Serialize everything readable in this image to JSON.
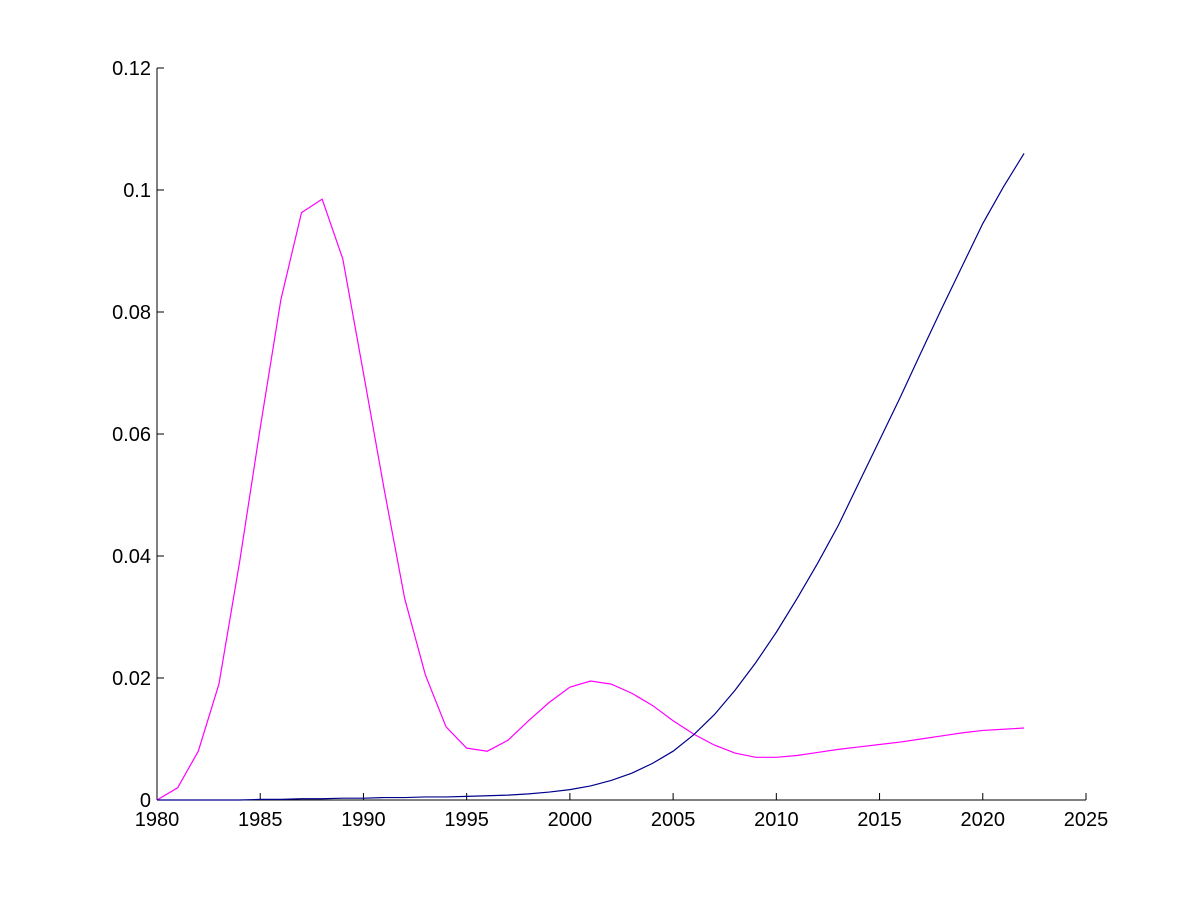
{
  "chart_data": {
    "type": "line",
    "title": "",
    "xlabel": "",
    "ylabel": "",
    "xlim": [
      1980,
      2025
    ],
    "ylim": [
      0,
      0.12
    ],
    "xticks": [
      "1980",
      "1985",
      "1990",
      "1995",
      "2000",
      "2005",
      "2010",
      "2015",
      "2020",
      "2025"
    ],
    "yticks": [
      "0",
      "0.02",
      "0.04",
      "0.06",
      "0.08",
      "0.1",
      "0.12"
    ],
    "grid": false,
    "legend": "none",
    "x": [
      1980,
      1981,
      1982,
      1983,
      1984,
      1985,
      1986,
      1987,
      1988,
      1989,
      1990,
      1991,
      1992,
      1993,
      1994,
      1995,
      1996,
      1997,
      1998,
      1999,
      2000,
      2001,
      2002,
      2003,
      2004,
      2005,
      2006,
      2007,
      2008,
      2009,
      2010,
      2011,
      2012,
      2013,
      2014,
      2015,
      2016,
      2017,
      2018,
      2019,
      2020,
      2021,
      2022
    ],
    "series": [
      {
        "color": "#ff00ff",
        "values": [
          0,
          0.002,
          0.008,
          0.019,
          0.039,
          0.061,
          0.082,
          0.0963,
          0.0985,
          0.0887,
          0.07,
          0.051,
          0.033,
          0.0205,
          0.012,
          0.0085,
          0.008,
          0.0098,
          0.013,
          0.016,
          0.0185,
          0.0195,
          0.019,
          0.0175,
          0.0155,
          0.013,
          0.0108,
          0.009,
          0.0077,
          0.007,
          0.007,
          0.0073,
          0.0078,
          0.0083,
          0.0087,
          0.0091,
          0.0095,
          0.01,
          0.0105,
          0.011,
          0.0114,
          0.0116,
          0.0118
        ]
      },
      {
        "color": "#00008b",
        "values": [
          0,
          0,
          0,
          0,
          0,
          0.0001,
          0.0001,
          0.0002,
          0.0002,
          0.0003,
          0.0003,
          0.0004,
          0.0004,
          0.0005,
          0.0005,
          0.0006,
          0.0007,
          0.0008,
          0.001,
          0.0013,
          0.0017,
          0.0023,
          0.0032,
          0.0044,
          0.006,
          0.008,
          0.0107,
          0.014,
          0.018,
          0.0225,
          0.0275,
          0.033,
          0.0388,
          0.045,
          0.052,
          0.059,
          0.066,
          0.0733,
          0.0805,
          0.0875,
          0.0945,
          0.1005,
          0.106
        ]
      }
    ]
  }
}
